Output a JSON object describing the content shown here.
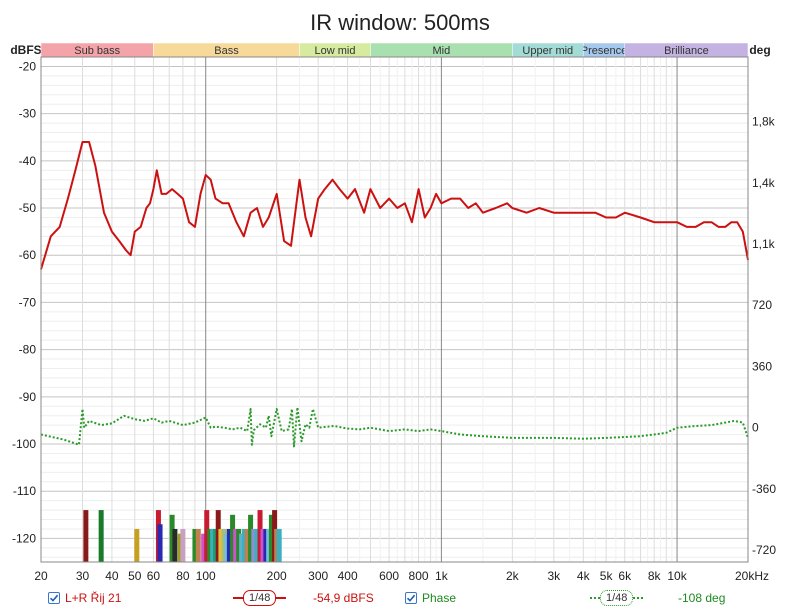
{
  "chart_data": {
    "type": "line",
    "title": "IR window: 500ms",
    "left_axis": {
      "label": "dBFS",
      "ticks": [
        -20,
        -30,
        -40,
        -50,
        -60,
        -70,
        -80,
        -90,
        -100,
        -110,
        -120
      ],
      "range": [
        -125,
        -18
      ]
    },
    "right_axis": {
      "label": "deg",
      "ticks": [
        "1,8k",
        "1,4k",
        "1,1k",
        "720",
        "360",
        "0",
        "-360",
        "-720"
      ],
      "tick_values": [
        1800,
        1440,
        1080,
        720,
        360,
        0,
        -360,
        -720
      ]
    },
    "x_axis": {
      "scale": "log",
      "range": [
        20,
        20000
      ],
      "tick_labels": [
        "20",
        "30",
        "40",
        "50",
        "60",
        "80",
        "100",
        "200",
        "300",
        "400",
        "600",
        "800",
        "1k",
        "2k",
        "3k",
        "4k",
        "5k",
        "6k",
        "8k",
        "10k",
        "20kHz"
      ],
      "tick_values": [
        20,
        30,
        40,
        50,
        60,
        80,
        100,
        200,
        300,
        400,
        600,
        800,
        1000,
        2000,
        3000,
        4000,
        5000,
        6000,
        8000,
        10000,
        20000
      ]
    },
    "bands": [
      {
        "name": "Sub bass",
        "from": 20,
        "to": 60,
        "color": "#f4a3a8"
      },
      {
        "name": "Bass",
        "from": 60,
        "to": 250,
        "color": "#f7da9a"
      },
      {
        "name": "Low mid",
        "from": 250,
        "to": 500,
        "color": "#d6eaa0"
      },
      {
        "name": "Mid",
        "from": 500,
        "to": 2000,
        "color": "#a9e0b0"
      },
      {
        "name": "Upper mid",
        "from": 2000,
        "to": 4000,
        "color": "#a3dbd6"
      },
      {
        "name": "Presence",
        "from": 4000,
        "to": 6000,
        "color": "#a5c9ec"
      },
      {
        "name": "Brilliance",
        "from": 6000,
        "to": 20000,
        "color": "#c3b2e2"
      }
    ],
    "series": [
      {
        "name": "L+R Řij 21",
        "color": "#cc1111",
        "style": "solid",
        "unit": "dBFS",
        "x": [
          20,
          22,
          24,
          26,
          28,
          30,
          32,
          34,
          37,
          40,
          43,
          46,
          48,
          50,
          53,
          56,
          58,
          60,
          62,
          65,
          68,
          72,
          76,
          80,
          85,
          90,
          95,
          100,
          105,
          110,
          118,
          125,
          135,
          145,
          155,
          165,
          175,
          185,
          200,
          215,
          230,
          250,
          265,
          280,
          300,
          320,
          345,
          370,
          400,
          430,
          470,
          500,
          550,
          600,
          650,
          700,
          750,
          800,
          850,
          900,
          950,
          1000,
          1100,
          1200,
          1300,
          1400,
          1500,
          1700,
          1900,
          2000,
          2300,
          2600,
          3000,
          3500,
          4000,
          4500,
          5000,
          5500,
          6000,
          7000,
          8000,
          9000,
          10000,
          11000,
          12000,
          13000,
          14000,
          15000,
          16000,
          17000,
          18000,
          19000,
          20000
        ],
        "y": [
          -63,
          -56,
          -54,
          -48,
          -42,
          -36,
          -36,
          -41,
          -51,
          -55,
          -57,
          -59,
          -60,
          -55,
          -54,
          -50,
          -49,
          -46,
          -42,
          -47,
          -47,
          -46,
          -47,
          -48,
          -53,
          -54,
          -47,
          -43,
          -44,
          -48,
          -49,
          -49,
          -53,
          -56,
          -51,
          -50,
          -54,
          -52,
          -47,
          -57,
          -58,
          -44,
          -52,
          -56,
          -48,
          -46,
          -44,
          -46,
          -48,
          -46,
          -51,
          -46,
          -50,
          -48,
          -50,
          -49,
          -53,
          -46,
          -52,
          -50,
          -47,
          -49,
          -48,
          -48,
          -50,
          -49,
          -51,
          -50,
          -49,
          -50,
          -51,
          -50,
          -51,
          -51,
          -51,
          -51,
          -52,
          -52,
          -51,
          -52,
          -53,
          -53,
          -53,
          -54,
          -54,
          -53,
          -53,
          -54,
          -54,
          -53,
          -53,
          -55,
          -61
        ]
      },
      {
        "name": "Phase",
        "color": "#2a9a2a",
        "style": "dotted",
        "unit": "deg",
        "x": [
          20,
          25,
          29,
          30,
          30.5,
          32,
          36,
          40,
          45,
          50,
          55,
          60,
          65,
          70,
          80,
          90,
          100,
          105,
          110,
          120,
          130,
          140,
          150,
          155,
          157,
          160,
          170,
          180,
          185,
          190,
          200,
          210,
          225,
          232,
          237,
          245,
          255,
          265,
          275,
          285,
          300,
          350,
          400,
          450,
          500,
          600,
          700,
          800,
          900,
          1000,
          1200,
          1500,
          2000,
          2500,
          3000,
          4000,
          5000,
          6000,
          7000,
          8000,
          9000,
          10000,
          12000,
          14000,
          16000,
          17500,
          19000,
          20000
        ],
        "y": [
          -40,
          -70,
          -100,
          110,
          0,
          40,
          15,
          25,
          70,
          50,
          40,
          55,
          30,
          40,
          15,
          30,
          60,
          0,
          5,
          0,
          -10,
          0,
          -20,
          110,
          -100,
          -15,
          20,
          0,
          70,
          -50,
          110,
          -20,
          -10,
          110,
          -110,
          120,
          -80,
          20,
          0,
          110,
          0,
          10,
          -5,
          -10,
          0,
          -20,
          -10,
          -20,
          -10,
          -20,
          -40,
          -50,
          -60,
          -60,
          -60,
          -65,
          -60,
          -55,
          -50,
          -40,
          -30,
          0,
          10,
          15,
          30,
          40,
          30,
          -60
        ]
      }
    ],
    "peak_bars": [
      {
        "f": 31,
        "db": -114,
        "color": "#8a1a1a"
      },
      {
        "f": 36,
        "db": -114,
        "color": "#1a7a2a"
      },
      {
        "f": 51,
        "db": -118,
        "color": "#c8a020"
      },
      {
        "f": 63,
        "db": -114,
        "color": "#c81a30"
      },
      {
        "f": 64,
        "db": -117,
        "color": "#2a2ab0"
      },
      {
        "f": 72,
        "db": -115,
        "color": "#2a8a2a"
      },
      {
        "f": 74,
        "db": -118,
        "color": "#2a2a2a"
      },
      {
        "f": 78,
        "db": -119,
        "color": "#a0a020"
      },
      {
        "f": 80,
        "db": -118,
        "color": "#c8a0c0"
      },
      {
        "f": 90,
        "db": -118,
        "color": "#2a8a2a"
      },
      {
        "f": 93,
        "db": -118,
        "color": "#c08050"
      },
      {
        "f": 98,
        "db": -119,
        "color": "#d050d0"
      },
      {
        "f": 101,
        "db": -114,
        "color": "#c81a30"
      },
      {
        "f": 104,
        "db": -118,
        "color": "#2a8a2a"
      },
      {
        "f": 107,
        "db": -118,
        "color": "#3ab0c0"
      },
      {
        "f": 110,
        "db": -118,
        "color": "#20a070"
      },
      {
        "f": 113,
        "db": -114,
        "color": "#8a1a1a"
      },
      {
        "f": 116,
        "db": -118,
        "color": "#e0c040"
      },
      {
        "f": 120,
        "db": -118,
        "color": "#a0c080"
      },
      {
        "f": 123,
        "db": -119,
        "color": "#70c0e0"
      },
      {
        "f": 126,
        "db": -118,
        "color": "#2a2ab0"
      },
      {
        "f": 130,
        "db": -115,
        "color": "#2a8a2a"
      },
      {
        "f": 134,
        "db": -118,
        "color": "#d050d0"
      },
      {
        "f": 138,
        "db": -118,
        "color": "#2a8a2a"
      },
      {
        "f": 142,
        "db": -119,
        "color": "#60b0d0"
      },
      {
        "f": 146,
        "db": -118,
        "color": "#3ab0c0"
      },
      {
        "f": 150,
        "db": -118,
        "color": "#c08050"
      },
      {
        "f": 155,
        "db": -115,
        "color": "#2a8a2a"
      },
      {
        "f": 160,
        "db": -118,
        "color": "#9090d0"
      },
      {
        "f": 165,
        "db": -118,
        "color": "#3ab0c0"
      },
      {
        "f": 170,
        "db": -114,
        "color": "#c81a30"
      },
      {
        "f": 175,
        "db": -118,
        "color": "#d050d0"
      },
      {
        "f": 180,
        "db": -118,
        "color": "#2a2ab0"
      },
      {
        "f": 185,
        "db": -118,
        "color": "#70c0e0"
      },
      {
        "f": 190,
        "db": -115,
        "color": "#2a8a2a"
      },
      {
        "f": 196,
        "db": -114,
        "color": "#8a1a1a"
      },
      {
        "f": 200,
        "db": -118,
        "color": "#c08050"
      },
      {
        "f": 205,
        "db": -118,
        "color": "#3ab0c0"
      }
    ],
    "grid": true
  },
  "legend": {
    "series1_label": "L+R Řij 21",
    "series1_smoothing": "1/48",
    "series1_value": "-54,9 dBFS",
    "series2_label": "Phase",
    "series2_smoothing": "1/48",
    "series2_value": "-108 deg",
    "checkbox_color": "#3a76c8"
  }
}
